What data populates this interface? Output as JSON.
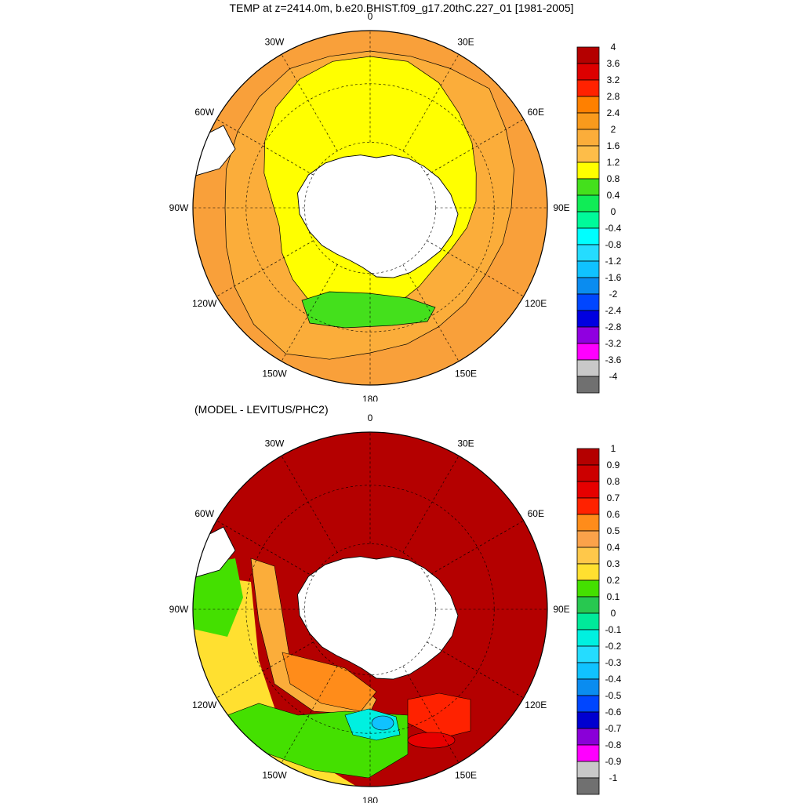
{
  "title": "TEMP at z=2414.0m, b.e20.BHIST.f09_g17.20thC.227_01 [1981-2005]",
  "difference_title": "(MODEL - LEVITUS/PHC2)",
  "longitude_labels": [
    "0",
    "30E",
    "60E",
    "90E",
    "120E",
    "150E",
    "180",
    "150W",
    "120W",
    "90W",
    "60W",
    "30W"
  ],
  "panels": [
    {
      "id": "model",
      "colorbar": {
        "labels": [
          "4",
          "3.6",
          "3.2",
          "2.8",
          "2.4",
          "2",
          "1.6",
          "1.2",
          "0.8",
          "0.4",
          "0",
          "-0.4",
          "-0.8",
          "-1.2",
          "-1.6",
          "-2",
          "-2.4",
          "-2.8",
          "-3.2",
          "-3.6",
          "-4"
        ],
        "colors": [
          "#b40000",
          "#dd0000",
          "#ff2200",
          "#ff8000",
          "#f99a1c",
          "#fbad3a",
          "#fdbd49",
          "#ffff00",
          "#44e01c",
          "#10ec56",
          "#00fa9a",
          "#00ffff",
          "#25dcff",
          "#10c2ff",
          "#0a8cf0",
          "#0046ff",
          "#0000e0",
          "#9000e0",
          "#ff00ff",
          "#c8c8c8",
          "#707070"
        ]
      }
    },
    {
      "id": "difference",
      "colorbar": {
        "labels": [
          "1",
          "0.9",
          "0.8",
          "0.7",
          "0.6",
          "0.5",
          "0.4",
          "0.3",
          "0.2",
          "0.1",
          "0",
          "-0.1",
          "-0.2",
          "-0.3",
          "-0.4",
          "-0.5",
          "-0.6",
          "-0.7",
          "-0.8",
          "-0.9",
          "-1"
        ],
        "colors": [
          "#b40000",
          "#cc0000",
          "#e60000",
          "#ff2200",
          "#ff8c1a",
          "#fba24a",
          "#ffc84a",
          "#ffe030",
          "#44e000",
          "#28c850",
          "#00ea9a",
          "#00f0e0",
          "#25dcff",
          "#10c2ff",
          "#0a8cf0",
          "#0046ff",
          "#0000d0",
          "#8a00d8",
          "#ff00ff",
          "#c8c8c8",
          "#707070"
        ]
      }
    }
  ]
}
